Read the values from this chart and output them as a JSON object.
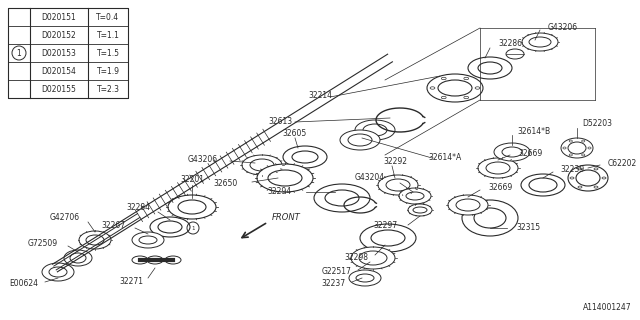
{
  "bg_color": "#ffffff",
  "line_color": "#2a2a2a",
  "table_rows": [
    [
      "D020151",
      "T=0.4"
    ],
    [
      "D020152",
      "T=1.1"
    ],
    [
      "D020153",
      "T=1.5"
    ],
    [
      "D020154",
      "T=1.9"
    ],
    [
      "D020155",
      "T=2.3"
    ]
  ],
  "circle_row": 2,
  "diagram_note": "A114001247",
  "front_label": "FRONT"
}
